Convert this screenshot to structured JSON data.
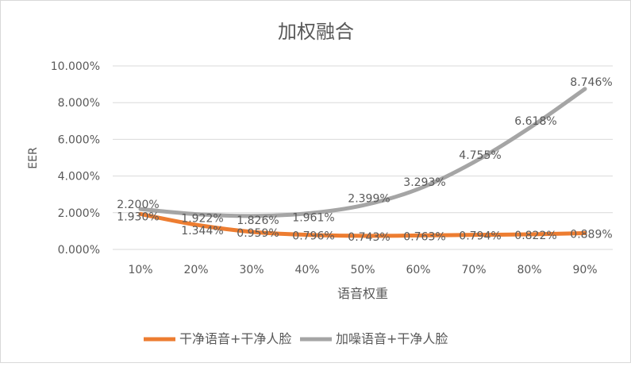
{
  "chart_data": {
    "type": "line",
    "title": "加权融合",
    "xlabel": "语音权重",
    "ylabel": "EER",
    "categories": [
      "10%",
      "20%",
      "30%",
      "40%",
      "50%",
      "60%",
      "70%",
      "80%",
      "90%"
    ],
    "y_ticks": [
      "0.000%",
      "2.000%",
      "4.000%",
      "6.000%",
      "8.000%",
      "10.000%"
    ],
    "ylim": [
      0,
      10
    ],
    "grid": true,
    "legend_position": "bottom",
    "series": [
      {
        "name": "干净语音+干净人脸",
        "color": "#ed7d31",
        "values": [
          1.93,
          1.344,
          0.959,
          0.796,
          0.743,
          0.763,
          0.794,
          0.822,
          0.889
        ],
        "labels": [
          "1.930%",
          "1.344%",
          "0.959%",
          "0.796%",
          "0.743%",
          "0.763%",
          "0.794%",
          "0.822%",
          "0.889%"
        ]
      },
      {
        "name": "加噪语音+干净人脸",
        "color": "#a5a5a5",
        "values": [
          2.2,
          1.922,
          1.826,
          1.961,
          2.399,
          3.293,
          4.755,
          6.618,
          8.746
        ],
        "labels": [
          "2.200%",
          "1.922%",
          "1.826%",
          "1.961%",
          "2.399%",
          "3.293%",
          "4.755%",
          "6.618%",
          "8.746%"
        ]
      }
    ]
  }
}
